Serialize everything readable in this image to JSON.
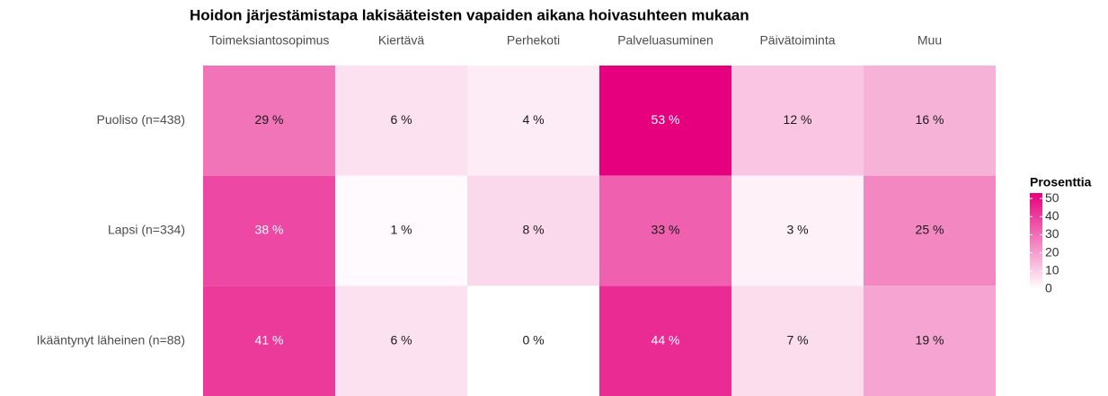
{
  "chart_data": {
    "type": "heatmap",
    "title": "Hoidon järjestämistapa lakisääteisten vapaiden aikana hoivasuhteen mukaan",
    "x_categories": [
      "Toimeksiantosopimus",
      "Kiertävä",
      "Perhekoti",
      "Palveluasuminen",
      "Päivätoiminta",
      "Muu"
    ],
    "y_categories": [
      "Puoliso (n=438)",
      "Lapsi (n=334)",
      "Ikääntynyt läheinen (n=88)"
    ],
    "values": [
      [
        29,
        6,
        4,
        53,
        12,
        16
      ],
      [
        38,
        1,
        8,
        33,
        3,
        25
      ],
      [
        41,
        6,
        0,
        44,
        7,
        19
      ]
    ],
    "value_labels": [
      [
        "29 %",
        "6 %",
        "4 %",
        "53 %",
        "12 %",
        "16 %"
      ],
      [
        "38 %",
        "1 %",
        "8 %",
        "33 %",
        "3 %",
        "25 %"
      ],
      [
        "41 %",
        "6 %",
        "0 %",
        "44 %",
        "7 %",
        "19 %"
      ]
    ],
    "colorbar_title": "Prosenttia",
    "colorbar_lim": [
      0,
      53
    ],
    "colorbar_ticks": [
      0,
      10,
      20,
      30,
      40,
      50
    ],
    "color_low": "#ffffff",
    "color_high": "#e6007e"
  }
}
